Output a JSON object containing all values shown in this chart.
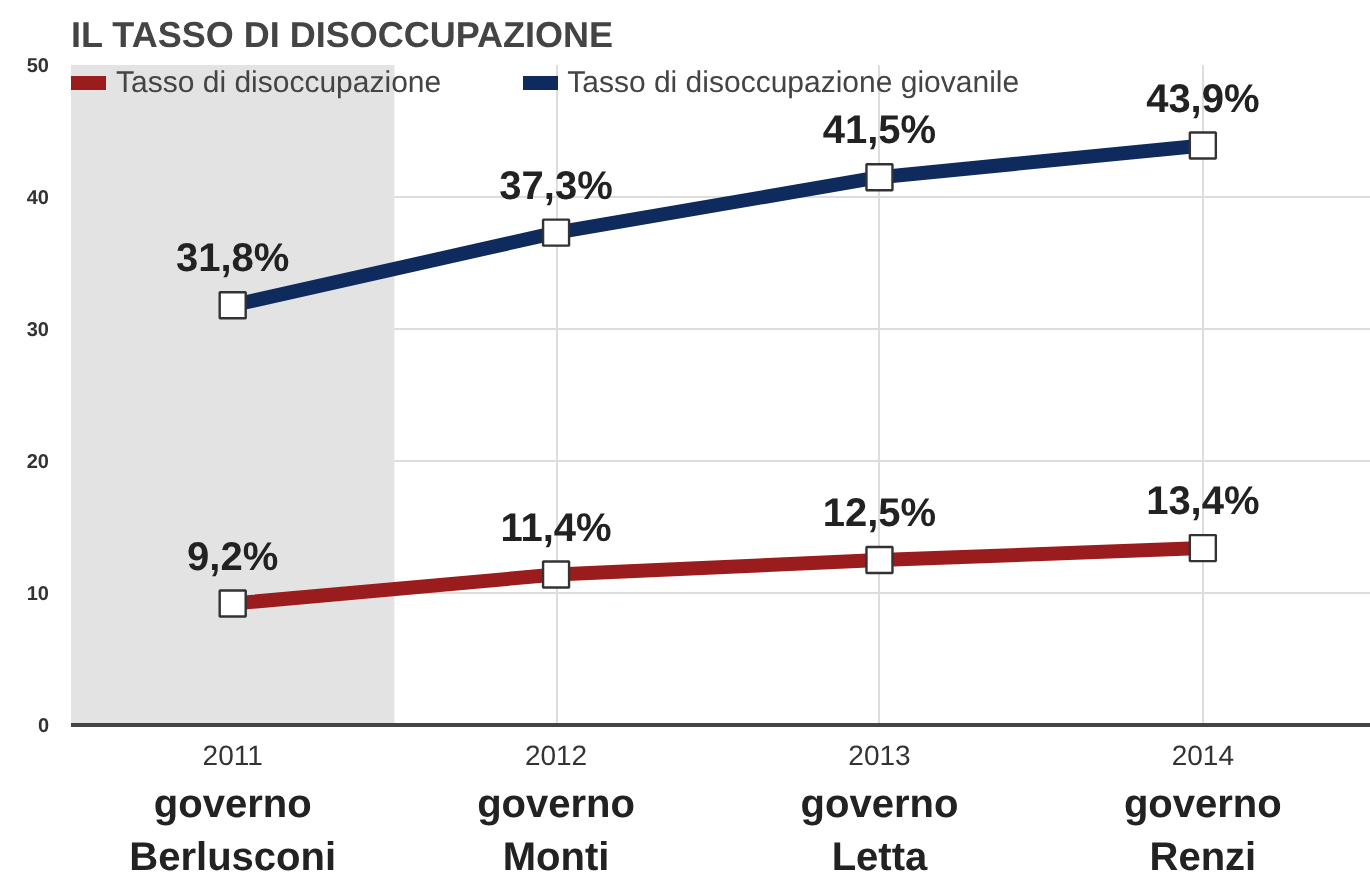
{
  "chart_data": {
    "type": "line",
    "title": "IL TASSO DI DISOCCUPAZIONE",
    "x": [
      2011,
      2012,
      2013,
      2014
    ],
    "xlim": [
      2010.5,
      2014.52
    ],
    "xticks": [
      2011,
      2012,
      2013,
      2014
    ],
    "ylim": [
      0,
      50
    ],
    "yticks": [
      0,
      10,
      20,
      30,
      40,
      50
    ],
    "series": [
      {
        "name": "Tasso di disoccupazione",
        "color": "#9b1c1c",
        "values": [
          9.2,
          11.4,
          12.5,
          13.4
        ],
        "value_labels": [
          "9,2%",
          "11,4%",
          "12,5%",
          "13,4%"
        ]
      },
      {
        "name": "Tasso di disoccupazione giovanile",
        "color": "#0f2a5c",
        "values": [
          31.8,
          37.3,
          41.5,
          43.9
        ],
        "value_labels": [
          "31,8%",
          "37,3%",
          "41,5%",
          "43,9%"
        ]
      }
    ],
    "bands": [
      {
        "axis": "x",
        "from": 2010.5,
        "to": 2011.5,
        "color": "#e3e3e3"
      }
    ],
    "annotations": [
      "governo\nBerlusconi",
      "governo\nMonti",
      "governo\nLetta",
      "governo\nRenzi"
    ],
    "marker": "square",
    "grid": true,
    "legend": "top left"
  }
}
